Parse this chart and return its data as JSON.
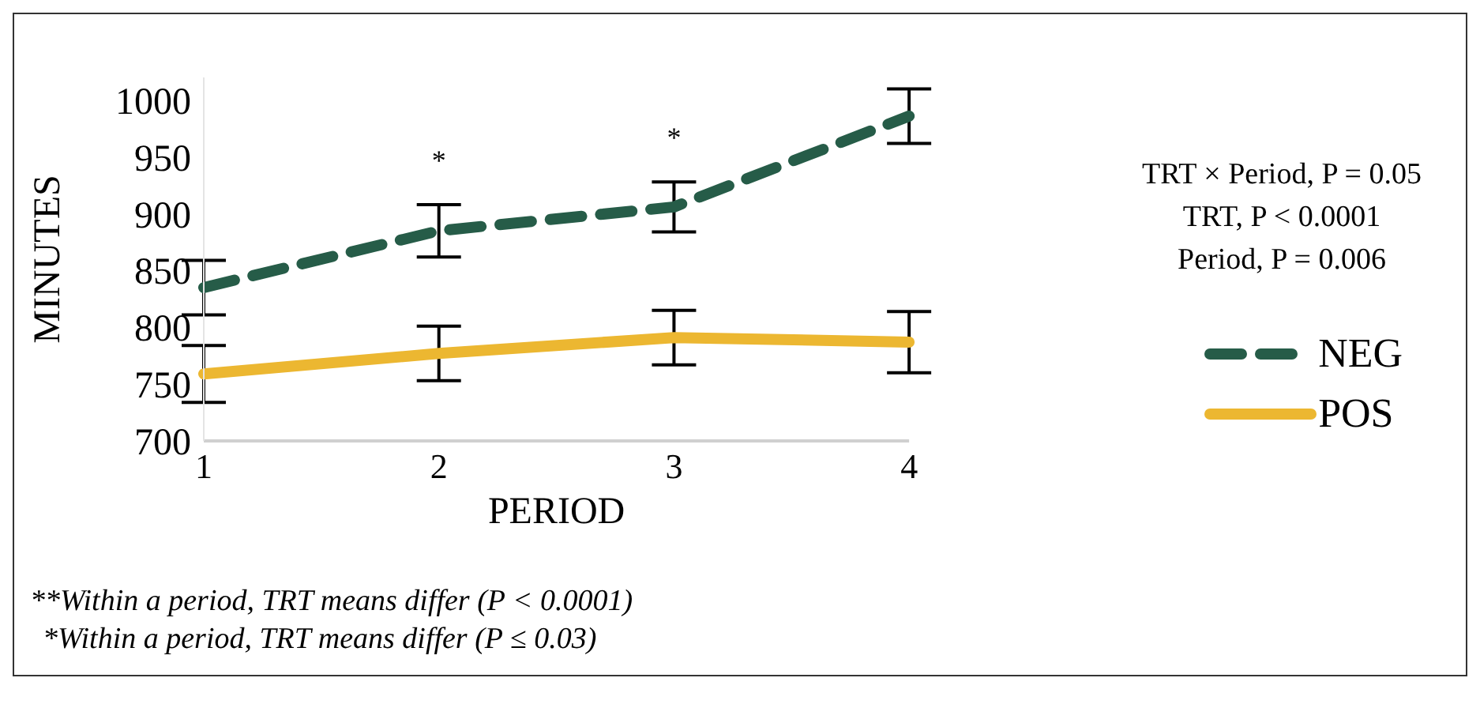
{
  "chart_data": {
    "type": "line",
    "xlabel": "PERIOD",
    "ylabel": "MINUTES",
    "categories": [
      "1",
      "2",
      "3",
      "4"
    ],
    "series": [
      {
        "name": "NEG",
        "color": "#265c48",
        "line_style": "dashed",
        "values": [
          835,
          885,
          906,
          986
        ],
        "errors": [
          24,
          23,
          22,
          24
        ]
      },
      {
        "name": "POS",
        "color": "#ecb731",
        "line_style": "solid",
        "values": [
          759,
          777,
          791,
          787
        ],
        "errors": [
          25,
          24,
          24,
          27
        ]
      }
    ],
    "ylim": [
      700,
      1020
    ],
    "yticks": [
      700,
      750,
      800,
      850,
      900,
      950,
      1000
    ],
    "grid": false,
    "legend": "right",
    "marker": "none",
    "annotations": [
      "*",
      "*",
      "TRT × Period, P = 0.05\nTRT, P < 0.0001\nPeriod, P = 0.006",
      "**Within a period, TRT means differ (P < 0.0001)",
      "*Within a period, TRT means differ (P ≤ 0.03)"
    ]
  }
}
